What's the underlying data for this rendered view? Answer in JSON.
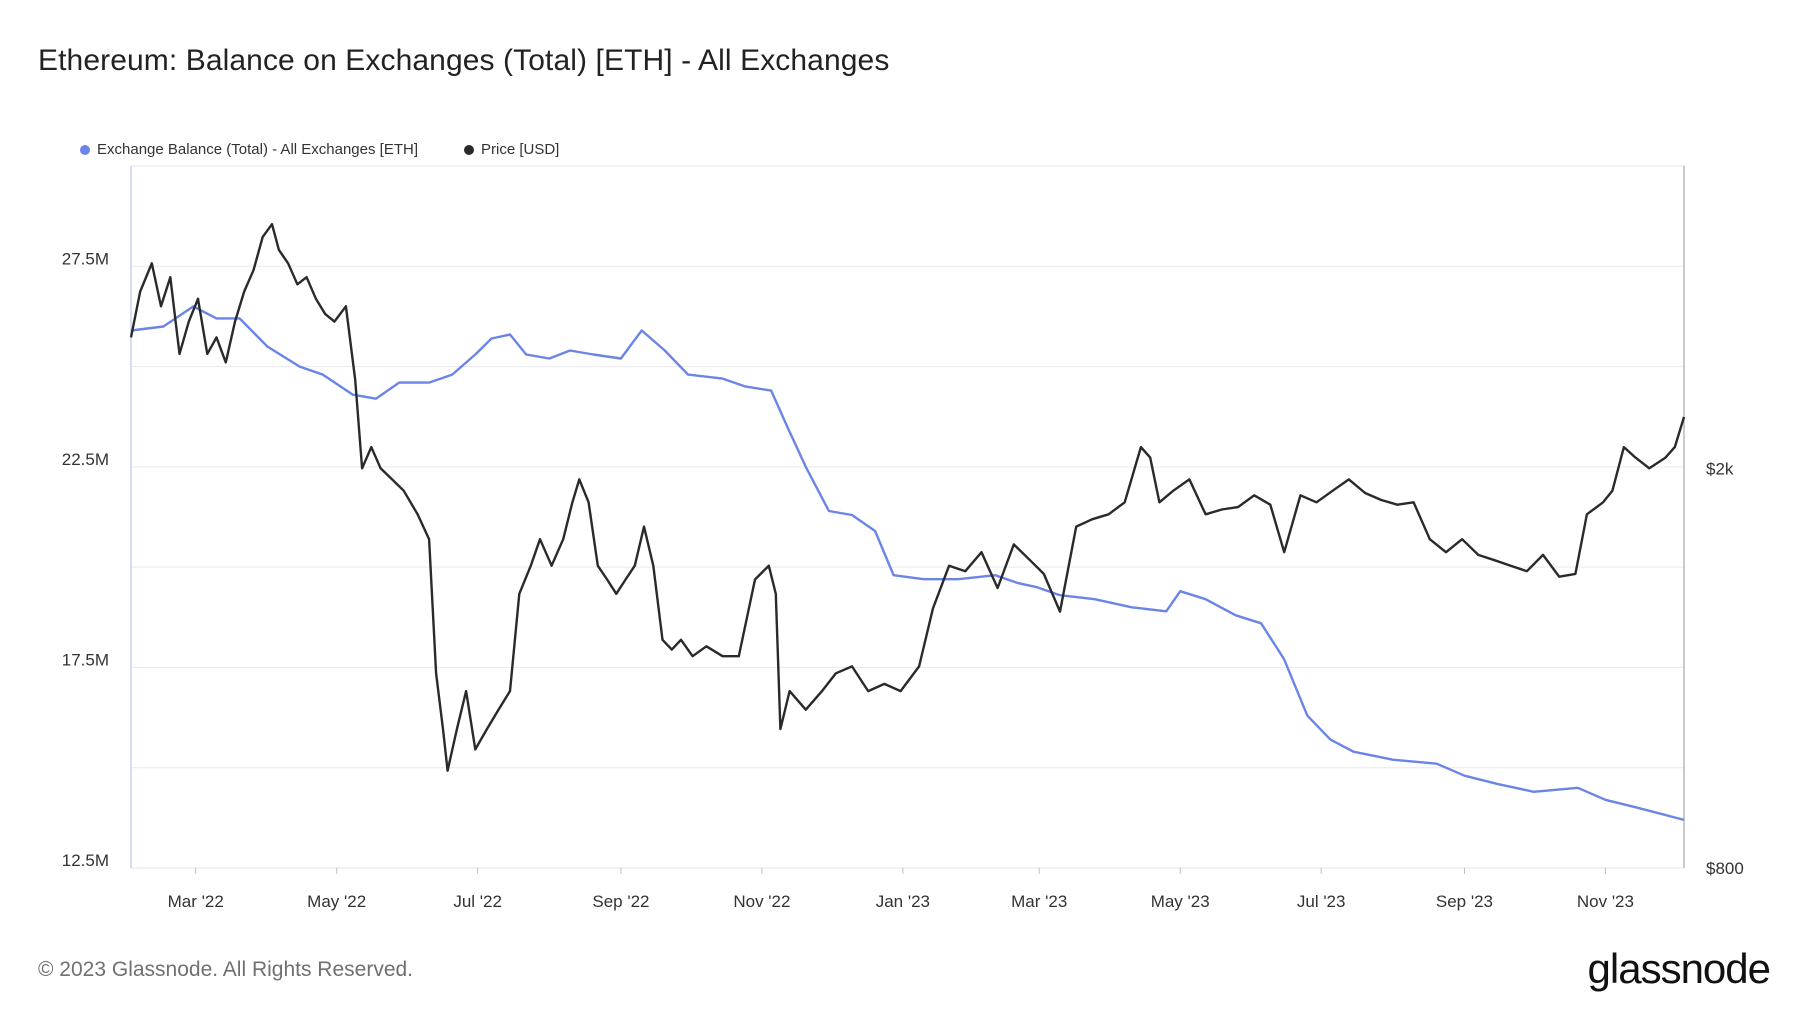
{
  "title": "Ethereum: Balance on Exchanges (Total) [ETH] - All Exchanges",
  "footer": "© 2023 Glassnode. All Rights Reserved.",
  "logo": "glassnode",
  "colors": {
    "balance": "#6a85e6",
    "price": "#2a2a2a",
    "grid": "#e9e9ee"
  },
  "chart_data": {
    "type": "line",
    "title": "Ethereum: Balance on Exchanges (Total) [ETH] - All Exchanges",
    "x_ticks": [
      "Mar '22",
      "May '22",
      "Jul '22",
      "Sep '22",
      "Nov '22",
      "Jan '23",
      "Mar '23",
      "May '23",
      "Jul '23",
      "Sep '23",
      "Nov '23"
    ],
    "x_range": [
      "2022-02-01",
      "2023-12-05"
    ],
    "left_axis": {
      "ticks": [
        "27.5M",
        "22.5M",
        "17.5M",
        "12.5M"
      ],
      "tick_values": [
        27500000,
        22500000,
        17500000,
        12500000
      ],
      "ylim": [
        12500000,
        30000000
      ]
    },
    "right_axis": {
      "ticks": [
        "$2k",
        "$800"
      ],
      "tick_values": [
        2000,
        800
      ],
      "scale": "log",
      "ylim": [
        800,
        4000
      ]
    },
    "legend_position": "top-left",
    "grid": true,
    "series": [
      {
        "name": "Exchange Balance (Total) - All Exchanges [ETH]",
        "axis": "left",
        "points": [
          [
            "2022-02-01",
            25900000
          ],
          [
            "2022-02-15",
            26000000
          ],
          [
            "2022-02-28",
            26500000
          ],
          [
            "2022-03-10",
            26200000
          ],
          [
            "2022-03-20",
            26200000
          ],
          [
            "2022-04-01",
            25500000
          ],
          [
            "2022-04-15",
            25000000
          ],
          [
            "2022-04-25",
            24800000
          ],
          [
            "2022-05-08",
            24300000
          ],
          [
            "2022-05-18",
            24200000
          ],
          [
            "2022-05-28",
            24600000
          ],
          [
            "2022-06-10",
            24600000
          ],
          [
            "2022-06-20",
            24800000
          ],
          [
            "2022-06-30",
            25300000
          ],
          [
            "2022-07-07",
            25700000
          ],
          [
            "2022-07-15",
            25800000
          ],
          [
            "2022-07-22",
            25300000
          ],
          [
            "2022-08-01",
            25200000
          ],
          [
            "2022-08-10",
            25400000
          ],
          [
            "2022-08-20",
            25300000
          ],
          [
            "2022-09-01",
            25200000
          ],
          [
            "2022-09-10",
            25900000
          ],
          [
            "2022-09-20",
            25400000
          ],
          [
            "2022-09-30",
            24800000
          ],
          [
            "2022-10-15",
            24700000
          ],
          [
            "2022-10-25",
            24500000
          ],
          [
            "2022-11-05",
            24400000
          ],
          [
            "2022-11-12",
            23500000
          ],
          [
            "2022-11-20",
            22500000
          ],
          [
            "2022-11-30",
            21400000
          ],
          [
            "2022-12-10",
            21300000
          ],
          [
            "2022-12-20",
            20900000
          ],
          [
            "2022-12-28",
            19800000
          ],
          [
            "2023-01-10",
            19700000
          ],
          [
            "2023-01-25",
            19700000
          ],
          [
            "2023-02-10",
            19800000
          ],
          [
            "2023-02-20",
            19600000
          ],
          [
            "2023-02-28",
            19500000
          ],
          [
            "2023-03-10",
            19300000
          ],
          [
            "2023-03-25",
            19200000
          ],
          [
            "2023-04-10",
            19000000
          ],
          [
            "2023-04-25",
            18900000
          ],
          [
            "2023-05-01",
            19400000
          ],
          [
            "2023-05-12",
            19200000
          ],
          [
            "2023-05-25",
            18800000
          ],
          [
            "2023-06-05",
            18600000
          ],
          [
            "2023-06-15",
            17700000
          ],
          [
            "2023-06-25",
            16300000
          ],
          [
            "2023-07-05",
            15700000
          ],
          [
            "2023-07-15",
            15400000
          ],
          [
            "2023-08-01",
            15200000
          ],
          [
            "2023-08-20",
            15100000
          ],
          [
            "2023-09-01",
            14800000
          ],
          [
            "2023-09-15",
            14600000
          ],
          [
            "2023-10-01",
            14400000
          ],
          [
            "2023-10-20",
            14500000
          ],
          [
            "2023-11-01",
            14200000
          ],
          [
            "2023-11-15",
            14000000
          ],
          [
            "2023-12-05",
            13700000
          ]
        ]
      },
      {
        "name": "Price [USD]",
        "axis": "right",
        "points": [
          [
            "2022-02-01",
            2700
          ],
          [
            "2022-02-05",
            3000
          ],
          [
            "2022-02-10",
            3200
          ],
          [
            "2022-02-14",
            2900
          ],
          [
            "2022-02-18",
            3100
          ],
          [
            "2022-02-22",
            2600
          ],
          [
            "2022-02-26",
            2800
          ],
          [
            "2022-03-02",
            2950
          ],
          [
            "2022-03-06",
            2600
          ],
          [
            "2022-03-10",
            2700
          ],
          [
            "2022-03-14",
            2550
          ],
          [
            "2022-03-18",
            2800
          ],
          [
            "2022-03-22",
            3000
          ],
          [
            "2022-03-26",
            3150
          ],
          [
            "2022-03-30",
            3400
          ],
          [
            "2022-04-03",
            3500
          ],
          [
            "2022-04-06",
            3300
          ],
          [
            "2022-04-10",
            3200
          ],
          [
            "2022-04-14",
            3050
          ],
          [
            "2022-04-18",
            3100
          ],
          [
            "2022-04-22",
            2950
          ],
          [
            "2022-04-26",
            2850
          ],
          [
            "2022-04-30",
            2800
          ],
          [
            "2022-05-05",
            2900
          ],
          [
            "2022-05-09",
            2450
          ],
          [
            "2022-05-12",
            2000
          ],
          [
            "2022-05-16",
            2100
          ],
          [
            "2022-05-20",
            2000
          ],
          [
            "2022-05-25",
            1950
          ],
          [
            "2022-05-30",
            1900
          ],
          [
            "2022-06-05",
            1800
          ],
          [
            "2022-06-10",
            1700
          ],
          [
            "2022-06-13",
            1250
          ],
          [
            "2022-06-16",
            1100
          ],
          [
            "2022-06-18",
            1000
          ],
          [
            "2022-06-22",
            1100
          ],
          [
            "2022-06-26",
            1200
          ],
          [
            "2022-06-30",
            1050
          ],
          [
            "2022-07-05",
            1100
          ],
          [
            "2022-07-10",
            1150
          ],
          [
            "2022-07-15",
            1200
          ],
          [
            "2022-07-19",
            1500
          ],
          [
            "2022-07-24",
            1600
          ],
          [
            "2022-07-28",
            1700
          ],
          [
            "2022-08-02",
            1600
          ],
          [
            "2022-08-07",
            1700
          ],
          [
            "2022-08-11",
            1850
          ],
          [
            "2022-08-14",
            1950
          ],
          [
            "2022-08-18",
            1850
          ],
          [
            "2022-08-22",
            1600
          ],
          [
            "2022-08-26",
            1550
          ],
          [
            "2022-08-30",
            1500
          ],
          [
            "2022-09-03",
            1550
          ],
          [
            "2022-09-07",
            1600
          ],
          [
            "2022-09-11",
            1750
          ],
          [
            "2022-09-15",
            1600
          ],
          [
            "2022-09-19",
            1350
          ],
          [
            "2022-09-23",
            1320
          ],
          [
            "2022-09-27",
            1350
          ],
          [
            "2022-10-02",
            1300
          ],
          [
            "2022-10-08",
            1330
          ],
          [
            "2022-10-15",
            1300
          ],
          [
            "2022-10-22",
            1300
          ],
          [
            "2022-10-29",
            1550
          ],
          [
            "2022-11-04",
            1600
          ],
          [
            "2022-11-07",
            1500
          ],
          [
            "2022-11-09",
            1100
          ],
          [
            "2022-11-13",
            1200
          ],
          [
            "2022-11-20",
            1150
          ],
          [
            "2022-11-27",
            1200
          ],
          [
            "2022-12-03",
            1250
          ],
          [
            "2022-12-10",
            1270
          ],
          [
            "2022-12-17",
            1200
          ],
          [
            "2022-12-24",
            1220
          ],
          [
            "2022-12-31",
            1200
          ],
          [
            "2023-01-08",
            1270
          ],
          [
            "2023-01-14",
            1450
          ],
          [
            "2023-01-21",
            1600
          ],
          [
            "2023-01-28",
            1580
          ],
          [
            "2023-02-04",
            1650
          ],
          [
            "2023-02-11",
            1520
          ],
          [
            "2023-02-18",
            1680
          ],
          [
            "2023-02-25",
            1620
          ],
          [
            "2023-03-03",
            1570
          ],
          [
            "2023-03-10",
            1440
          ],
          [
            "2023-03-17",
            1750
          ],
          [
            "2023-03-24",
            1780
          ],
          [
            "2023-03-31",
            1800
          ],
          [
            "2023-04-07",
            1850
          ],
          [
            "2023-04-14",
            2100
          ],
          [
            "2023-04-18",
            2050
          ],
          [
            "2023-04-22",
            1850
          ],
          [
            "2023-04-28",
            1900
          ],
          [
            "2023-05-05",
            1950
          ],
          [
            "2023-05-12",
            1800
          ],
          [
            "2023-05-19",
            1820
          ],
          [
            "2023-05-26",
            1830
          ],
          [
            "2023-06-02",
            1880
          ],
          [
            "2023-06-09",
            1840
          ],
          [
            "2023-06-15",
            1650
          ],
          [
            "2023-06-22",
            1880
          ],
          [
            "2023-06-29",
            1850
          ],
          [
            "2023-07-06",
            1900
          ],
          [
            "2023-07-13",
            1950
          ],
          [
            "2023-07-20",
            1890
          ],
          [
            "2023-07-27",
            1860
          ],
          [
            "2023-08-03",
            1840
          ],
          [
            "2023-08-10",
            1850
          ],
          [
            "2023-08-17",
            1700
          ],
          [
            "2023-08-24",
            1650
          ],
          [
            "2023-08-31",
            1700
          ],
          [
            "2023-09-07",
            1640
          ],
          [
            "2023-09-14",
            1620
          ],
          [
            "2023-09-21",
            1600
          ],
          [
            "2023-09-28",
            1580
          ],
          [
            "2023-10-05",
            1640
          ],
          [
            "2023-10-12",
            1560
          ],
          [
            "2023-10-19",
            1570
          ],
          [
            "2023-10-24",
            1800
          ],
          [
            "2023-10-31",
            1850
          ],
          [
            "2023-11-04",
            1900
          ],
          [
            "2023-11-09",
            2100
          ],
          [
            "2023-11-14",
            2050
          ],
          [
            "2023-11-20",
            2000
          ],
          [
            "2023-11-27",
            2050
          ],
          [
            "2023-12-01",
            2100
          ],
          [
            "2023-12-05",
            2250
          ]
        ]
      }
    ]
  }
}
